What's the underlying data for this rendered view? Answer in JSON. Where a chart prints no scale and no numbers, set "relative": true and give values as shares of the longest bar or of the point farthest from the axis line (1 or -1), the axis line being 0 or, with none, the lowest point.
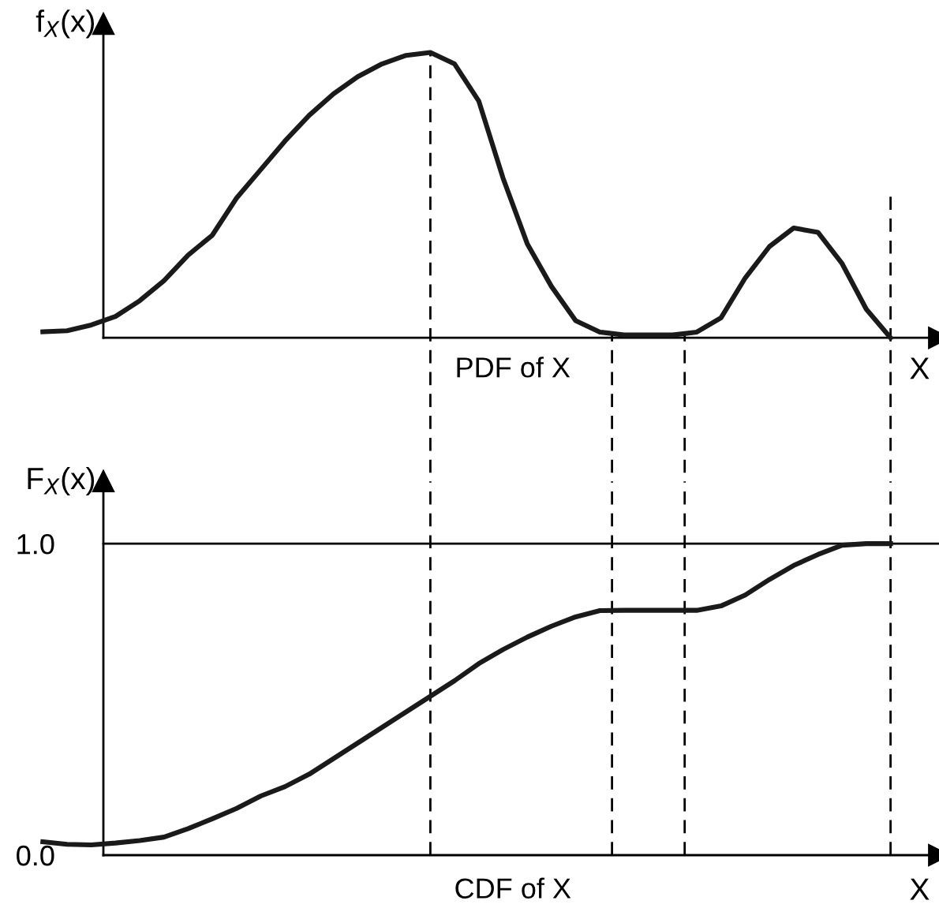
{
  "chart_data": [
    {
      "type": "line",
      "relative": true,
      "ylabel": "f$_{X}$(x)",
      "xlabel": "X",
      "annotations": [
        "PDF of X"
      ],
      "tick_labels": false,
      "grid": false,
      "marker": "none",
      "line_style": "solid",
      "categories": [
        null,
        null,
        null,
        null,
        null,
        null,
        null,
        null,
        null,
        null,
        null,
        null,
        null,
        null,
        null,
        null,
        null,
        null,
        null,
        null,
        null,
        null,
        null,
        null,
        null,
        null,
        null,
        null,
        null,
        null,
        null,
        null,
        null,
        null,
        null,
        null
      ],
      "series": [
        {
          "color": "#1a1a1a",
          "values": [
            0.021,
            0.025,
            0.045,
            0.075,
            0.13,
            0.2,
            0.29,
            0.36,
            0.49,
            0.59,
            0.69,
            0.78,
            0.855,
            0.915,
            0.96,
            0.99,
            1.0,
            0.96,
            0.83,
            0.56,
            0.33,
            0.18,
            0.06,
            0.02,
            0.01,
            0.01,
            0.01,
            0.02,
            0.07,
            0.21,
            0.32,
            0.385,
            0.37,
            0.26,
            0.1,
            0
          ]
        }
      ]
    },
    {
      "type": "line",
      "ylabel": "F$_{X}$(x)",
      "xlabel": "X",
      "annotations": [
        "CDF of X"
      ],
      "tick_labels": "y",
      "grid": false,
      "marker": "none",
      "line_style": "solid",
      "ylim": [
        0,
        1.2
      ],
      "yticks": [
        {
          "value": 0,
          "label": "0.0"
        },
        {
          "value": 1,
          "label": "1.0"
        }
      ],
      "categories": [
        null,
        null,
        null,
        null,
        null,
        null,
        null,
        null,
        null,
        null,
        null,
        null,
        null,
        null,
        null,
        null,
        null,
        null,
        null,
        null,
        null,
        null,
        null,
        null,
        null,
        null,
        null,
        null,
        null,
        null,
        null,
        null,
        null,
        null,
        null,
        null
      ],
      "series": [
        {
          "color": "#1a1a1a",
          "values": [
            0.043,
            0.035,
            0.033,
            0.039,
            0.047,
            0.058,
            0.085,
            0.117,
            0.15,
            0.19,
            0.22,
            0.26,
            0.31,
            0.36,
            0.41,
            0.46,
            0.51,
            0.56,
            0.615,
            0.66,
            0.7,
            0.735,
            0.765,
            0.785,
            0.786,
            0.786,
            0.786,
            0.786,
            0.8,
            0.835,
            0.885,
            0.93,
            0.965,
            0.995,
            1.0,
            1.0
          ]
        }
      ],
      "ref_lines": [
        {
          "axis": "y",
          "value": 1.0,
          "line_style": "solid",
          "color": "#000000"
        }
      ]
    }
  ]
}
